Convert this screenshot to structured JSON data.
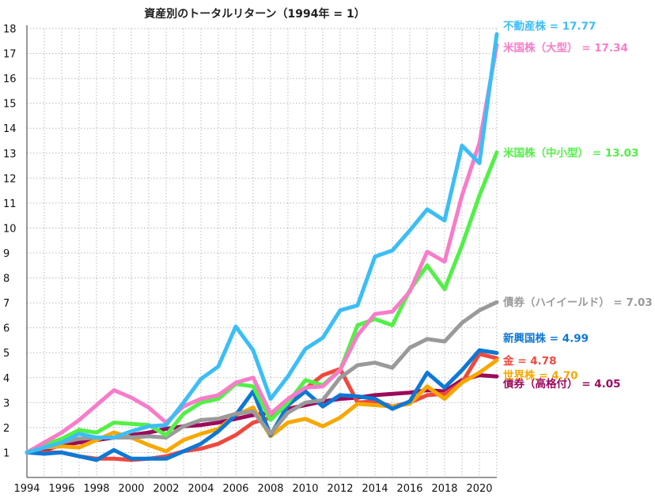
{
  "chart_data": {
    "type": "line",
    "title": "資産別のトータルリターン（1994年 = 1）",
    "xlabel": "",
    "ylabel": "",
    "xlim": [
      1994,
      2021
    ],
    "ylim": [
      0,
      18
    ],
    "grid": true,
    "legend": "right end labels",
    "x_ticks": [
      "1994",
      "1996",
      "1998",
      "2000",
      "2002",
      "2004",
      "2006",
      "2008",
      "2010",
      "2012",
      "2014",
      "2016",
      "2018",
      "2020"
    ],
    "y_ticks": [
      "1",
      "2",
      "3",
      "4",
      "5",
      "6",
      "7",
      "8",
      "9",
      "10",
      "11",
      "12",
      "13",
      "14",
      "15",
      "16",
      "17",
      "18"
    ],
    "x": [
      1994,
      1995,
      1996,
      1997,
      1998,
      1999,
      2000,
      2001,
      2002,
      2003,
      2004,
      2005,
      2006,
      2007,
      2008,
      2009,
      2010,
      2011,
      2012,
      2013,
      2014,
      2015,
      2016,
      2017,
      2018,
      2019,
      2020,
      2021
    ],
    "series": [
      {
        "label": "債券（高格付） = 4.05",
        "color": "#9c0a5c",
        "values": [
          1.0,
          1.1,
          1.3,
          1.4,
          1.5,
          1.6,
          1.7,
          1.8,
          1.95,
          2.05,
          2.1,
          2.2,
          2.35,
          2.5,
          2.6,
          2.75,
          2.9,
          3.05,
          3.15,
          3.2,
          3.3,
          3.35,
          3.4,
          3.5,
          3.45,
          3.9,
          4.1,
          4.05
        ]
      },
      {
        "label": "金 = 4.78",
        "color": "#f0483e",
        "values": [
          1.0,
          1.0,
          1.0,
          0.85,
          0.75,
          0.75,
          0.7,
          0.75,
          0.85,
          1.05,
          1.15,
          1.35,
          1.7,
          2.2,
          2.4,
          2.9,
          3.55,
          4.1,
          4.35,
          3.0,
          3.05,
          2.85,
          3.0,
          3.3,
          3.35,
          3.8,
          4.95,
          4.78
        ]
      },
      {
        "label": "世界株 = 4.70",
        "color": "#f7a800",
        "values": [
          1.0,
          1.2,
          1.25,
          1.2,
          1.5,
          1.8,
          1.6,
          1.3,
          1.05,
          1.5,
          1.75,
          1.95,
          2.5,
          2.8,
          1.65,
          2.2,
          2.35,
          2.05,
          2.4,
          2.95,
          2.9,
          2.85,
          2.95,
          3.65,
          3.15,
          3.8,
          4.2,
          4.7
        ]
      },
      {
        "label": "新興国株 = 4.99",
        "color": "#0e78d4",
        "values": [
          1.0,
          0.95,
          1.0,
          0.85,
          0.7,
          1.1,
          0.75,
          0.75,
          0.75,
          1.05,
          1.35,
          1.85,
          2.5,
          3.45,
          1.7,
          2.9,
          3.45,
          2.85,
          3.3,
          3.25,
          3.15,
          2.75,
          3.05,
          4.2,
          3.6,
          4.3,
          5.1,
          4.99
        ]
      },
      {
        "label": "債券（ハイイールド） = 7.03",
        "color": "#9a9a9a",
        "values": [
          1.0,
          1.2,
          1.4,
          1.55,
          1.6,
          1.6,
          1.6,
          1.65,
          1.6,
          2.05,
          2.3,
          2.35,
          2.55,
          2.65,
          1.75,
          2.6,
          3.0,
          3.1,
          4.0,
          4.5,
          4.6,
          4.4,
          5.2,
          5.55,
          5.45,
          6.2,
          6.7,
          7.03
        ]
      },
      {
        "label": "米国株（中小型） = 13.03",
        "color": "#52f046",
        "values": [
          1.0,
          1.3,
          1.55,
          1.9,
          1.8,
          2.2,
          2.15,
          2.1,
          1.7,
          2.55,
          3.0,
          3.15,
          3.75,
          3.65,
          2.3,
          3.0,
          3.9,
          3.7,
          4.3,
          6.1,
          6.35,
          6.1,
          7.5,
          8.5,
          7.55,
          9.3,
          11.3,
          13.03
        ]
      },
      {
        "label": "米国株（大型） = 17.34",
        "color": "#f77cc9",
        "values": [
          1.0,
          1.4,
          1.8,
          2.3,
          2.9,
          3.5,
          3.2,
          2.8,
          2.2,
          2.85,
          3.15,
          3.3,
          3.8,
          4.0,
          2.55,
          3.15,
          3.6,
          3.65,
          4.3,
          5.7,
          6.55,
          6.65,
          7.45,
          9.05,
          8.65,
          11.3,
          13.4,
          17.34
        ]
      },
      {
        "label": "不動産株 = 17.77",
        "color": "#3cbef5",
        "values": [
          1.0,
          1.2,
          1.4,
          1.75,
          1.6,
          1.6,
          1.85,
          2.05,
          2.1,
          3.0,
          3.95,
          4.45,
          6.05,
          5.1,
          3.15,
          4.05,
          5.15,
          5.6,
          6.7,
          6.9,
          8.85,
          9.1,
          9.9,
          10.75,
          10.3,
          13.3,
          12.6,
          17.77
        ]
      }
    ]
  }
}
